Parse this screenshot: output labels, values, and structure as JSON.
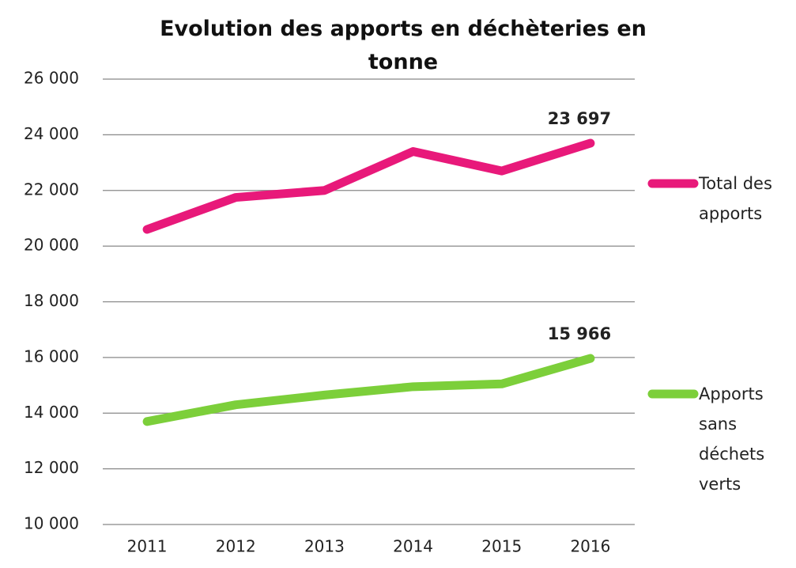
{
  "chart_data": {
    "type": "line",
    "title": "Evolution  des apports en déchèteries en tonne",
    "categories": [
      "2011",
      "2012",
      "2013",
      "2014",
      "2015",
      "2016"
    ],
    "series": [
      {
        "name": "Total des apports",
        "color": "#e8197a",
        "values": [
          20600,
          21750,
          22000,
          23400,
          22700,
          23697
        ],
        "value_labels": [
          null,
          null,
          null,
          null,
          null,
          "23 697"
        ]
      },
      {
        "name": "Apports sans déchets verts",
        "color": "#7ccf3a",
        "values": [
          13700,
          14300,
          14650,
          14950,
          15050,
          15966
        ],
        "value_labels": [
          null,
          null,
          null,
          null,
          null,
          "15 966"
        ]
      }
    ],
    "ylim": [
      10000,
      26000
    ],
    "yticks": [
      {
        "value": 10000,
        "label": "10 000"
      },
      {
        "value": 12000,
        "label": "12 000"
      },
      {
        "value": 14000,
        "label": "14 000"
      },
      {
        "value": 16000,
        "label": "16 000"
      },
      {
        "value": 18000,
        "label": "18 000"
      },
      {
        "value": 20000,
        "label": "20 000"
      },
      {
        "value": 22000,
        "label": "22 000"
      },
      {
        "value": 24000,
        "label": "24 000"
      },
      {
        "value": 26000,
        "label": "26 000"
      }
    ],
    "grid": true,
    "legend": "right"
  }
}
